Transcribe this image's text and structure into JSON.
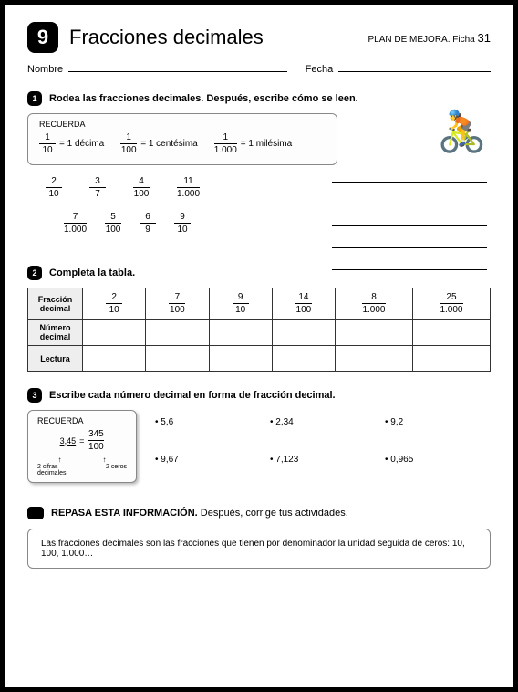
{
  "unit_number": "9",
  "title": "Fracciones decimales",
  "plan_label": "PLAN DE MEJORA. Ficha",
  "plan_number": "31",
  "name_label": "Nombre",
  "date_label": "Fecha",
  "sec1": {
    "num": "1",
    "instruction": "Rodea las fracciones decimales. Después, escribe cómo se leen.",
    "recuerda_title": "RECUERDA",
    "items": [
      {
        "n": "1",
        "d": "10",
        "eq": "= 1 décima"
      },
      {
        "n": "1",
        "d": "100",
        "eq": "= 1 centésima"
      },
      {
        "n": "1",
        "d": "1.000",
        "eq": "= 1 milésima"
      }
    ],
    "row1": [
      {
        "n": "2",
        "d": "10"
      },
      {
        "n": "3",
        "d": "7"
      },
      {
        "n": "4",
        "d": "100"
      },
      {
        "n": "11",
        "d": "1.000"
      }
    ],
    "row2": [
      {
        "n": "7",
        "d": "1.000"
      },
      {
        "n": "5",
        "d": "100"
      },
      {
        "n": "6",
        "d": "9"
      },
      {
        "n": "9",
        "d": "10"
      }
    ]
  },
  "sec2": {
    "num": "2",
    "instruction": "Completa la tabla.",
    "headers": [
      "Fracción decimal",
      "Número decimal",
      "Lectura"
    ],
    "fractions": [
      {
        "n": "2",
        "d": "10"
      },
      {
        "n": "7",
        "d": "100"
      },
      {
        "n": "9",
        "d": "10"
      },
      {
        "n": "14",
        "d": "100"
      },
      {
        "n": "8",
        "d": "1.000"
      },
      {
        "n": "25",
        "d": "1.000"
      }
    ]
  },
  "sec3": {
    "num": "3",
    "instruction": "Escribe cada número decimal en forma de fracción decimal.",
    "recuerda_title": "RECUERDA",
    "example_left": "3,45",
    "example_n": "345",
    "example_d": "100",
    "arrow_left": "2 cifras decimales",
    "arrow_right": "2 ceros",
    "numbers": [
      "5,6",
      "2,34",
      "9,2",
      "9,67",
      "7,123",
      "0,965"
    ]
  },
  "sec4": {
    "title": "REPASA ESTA INFORMACIÓN.",
    "subtitle": "Después, corrige tus actividades.",
    "text": "Las fracciones decimales son las fracciones que tienen por denominador la unidad seguida de ceros: 10, 100, 1.000…"
  }
}
